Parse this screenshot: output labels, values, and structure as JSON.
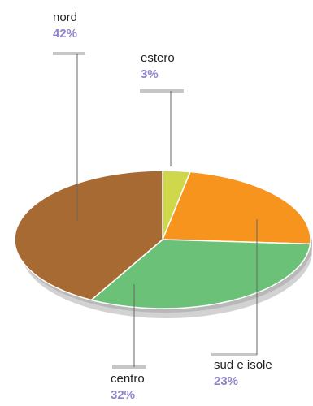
{
  "chart_data": {
    "type": "pie",
    "style": "3d-tilted",
    "legend": "none",
    "slices": [
      {
        "label": "estero",
        "value": 3,
        "value_label": "3%",
        "color": "#cfd84a"
      },
      {
        "label": "sud e isole",
        "value": 23,
        "value_label": "23%",
        "color": "#f7941d"
      },
      {
        "label": "centro",
        "value": 32,
        "value_label": "32%",
        "color": "#6cc178"
      },
      {
        "label": "nord",
        "value": 42,
        "value_label": "42%",
        "color": "#a86a33"
      }
    ],
    "colors": {
      "percent_text": "#8f85c8",
      "leader_line": "#666666",
      "label_bar": "#c6c6c6",
      "pie_shadow": "#d2d2d2",
      "pie_edge": "#b8b8b8",
      "slice_border": "#ffffff"
    }
  }
}
